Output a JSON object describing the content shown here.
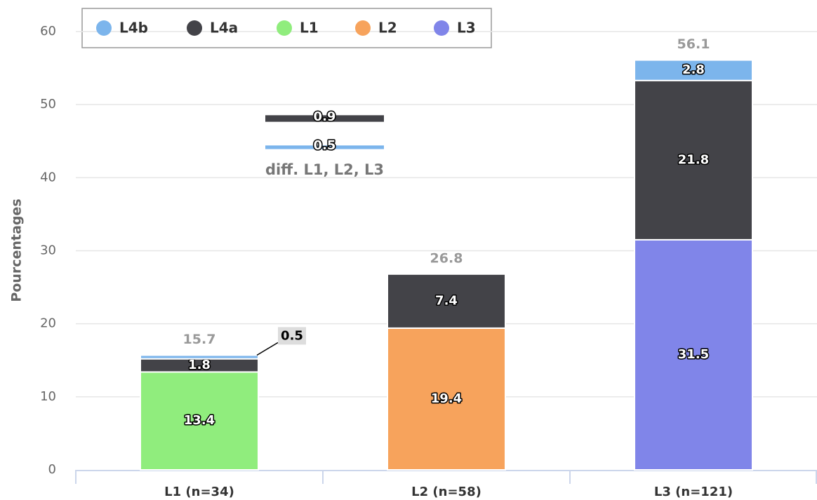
{
  "chart_data": {
    "type": "stacked_bar",
    "y_axis_label": "Pourcentages",
    "categories": [
      "L1 (n=34)",
      "L2 (n=58)",
      "L3 (n=121)"
    ],
    "series": [
      {
        "name": "L4b",
        "color": "#7cb5ec",
        "values": [
          0.5,
          null,
          2.8
        ]
      },
      {
        "name": "L4a",
        "color": "#434348",
        "values": [
          1.8,
          7.4,
          21.8
        ]
      },
      {
        "name": "L1",
        "color": "#90ed7d",
        "values": [
          13.4,
          null,
          null
        ]
      },
      {
        "name": "L2",
        "color": "#f7a35c",
        "values": [
          null,
          19.4,
          null
        ]
      },
      {
        "name": "L3",
        "color": "#8085e9",
        "values": [
          null,
          null,
          31.5
        ]
      }
    ],
    "totals": [
      15.7,
      26.8,
      56.1
    ],
    "ylim": [
      0,
      60
    ],
    "yticks": [
      0,
      10,
      20,
      30,
      40,
      50,
      60
    ],
    "grid": true,
    "legend_position": "top-left",
    "annotation": {
      "label": "diff. L1, L2, L3",
      "values": [
        0.9,
        0.5
      ],
      "colors": [
        "#434348",
        "#7cb5ec"
      ]
    }
  }
}
